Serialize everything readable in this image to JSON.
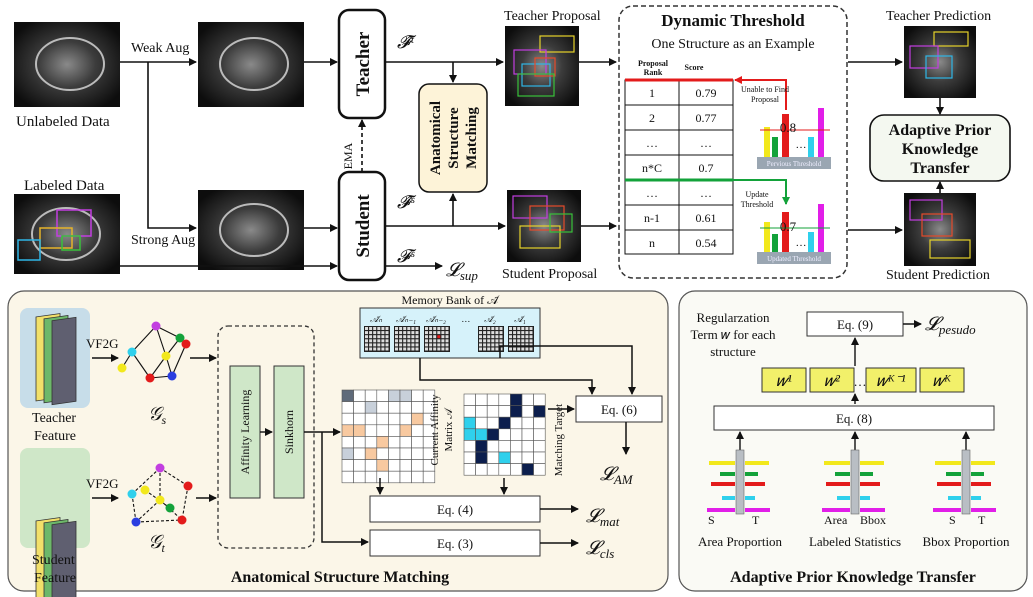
{
  "top": {
    "unlabeled_data": "Unlabeled Data",
    "labeled_data": "Labeled Data",
    "weak_aug": "Weak Aug",
    "strong_aug": "Strong Aug",
    "teacher": "Teacher",
    "student": "Student",
    "ema": "EMA",
    "f_t": "𝓕̂ᵗ",
    "f_s_hat": "𝓕̂ˢ",
    "f_s": "𝓕ˢ",
    "l_sup": "𝓛",
    "l_sup_sub": "sup",
    "asm_line1": "Anatomical",
    "asm_line2": "Structure",
    "asm_line3": "Matching",
    "teacher_proposal": "Teacher Proposal",
    "student_proposal": "Student Proposal",
    "teacher_prediction": "Teacher Prediction",
    "student_prediction": "Student Prediction",
    "apkt_line1": "Adaptive Prior",
    "apkt_line2": "Knowledge",
    "apkt_line3": "Transfer"
  },
  "dynamic_threshold": {
    "title": "Dynamic Threshold",
    "subtitle": "One Structure as an Example",
    "col_rank_line1": "Proposal",
    "col_rank_line2": "Rank",
    "col_score": "Score",
    "rows": [
      {
        "rank": "1",
        "score": "0.79"
      },
      {
        "rank": "2",
        "score": "0.77"
      },
      {
        "rank": "…",
        "score": "…"
      },
      {
        "rank": "n*C",
        "score": "0.7"
      },
      {
        "rank": "…",
        "score": "…"
      },
      {
        "rank": "n-1",
        "score": "0.61"
      },
      {
        "rank": "n",
        "score": "0.54"
      }
    ],
    "unable_line1": "Unable to Find",
    "unable_line2": "Proposal",
    "update_line1": "Update",
    "update_line2": "Threshold",
    "prev_value": "0.8",
    "prev_label": "Pervious Threshold",
    "upd_value": "0.7",
    "upd_label": "Updated Threshold",
    "dots": "…"
  },
  "asm_panel": {
    "title": "Anatomical Structure Matching",
    "vf2g": "VF2G",
    "teacher_feature_1": "Teacher",
    "teacher_feature_2": "Feature",
    "student_feature_1": "Student",
    "student_feature_2": "Feature",
    "g_s": "𝒢",
    "g_s_sub": "s",
    "g_t": "𝒢",
    "g_t_sub": "t",
    "affinity_learning": "Affinity Learning",
    "sinkhorn": "Sinkhorn",
    "memory_bank": "Memory Bank of 𝒜̄",
    "mb_labels": [
      "𝒜̄ₙ",
      "𝒜̄ₙ₋₁",
      "𝒜̄ₙ₋₂",
      "…",
      "𝒜̄₂",
      "𝒜̄₁"
    ],
    "current_affinity_1": "Current Affinity",
    "current_affinity_2": "Matrix 𝒜",
    "matching_target": "Matching Target",
    "eq6": "Eq. (6)",
    "eq4": "Eq. (4)",
    "eq3": "Eq. (3)",
    "l_am_sub": "AM",
    "l_mat_sub": "mat",
    "l_cls_sub": "cls",
    "l": "𝓛"
  },
  "apkt_panel": {
    "title": "Adaptive Prior Knowledge Transfer",
    "reg_line1": "Regularzation",
    "reg_line2": "Term 𝑤 for each",
    "reg_line3": "structure",
    "eq9": "Eq. (9)",
    "eq8": "Eq. (8)",
    "l_pesudo_sub": "pesudo",
    "w_labels": [
      "𝑤¹",
      "𝑤²",
      "…",
      "𝑤ᴷ⁻¹",
      "𝑤ᴷ"
    ],
    "area_proportion": "Area Proportion",
    "labeled_statistics": "Labeled Statistics",
    "bbox_proportion": "Bbox Proportion",
    "s": "S",
    "t": "T",
    "area": "Area",
    "bbox": "Bbox"
  },
  "colors": {
    "panel_bg": "#fbf6e8",
    "apkt_bg": "#fafaf5",
    "asm_box": "#fdf3d8",
    "green_box": "#cfe7c8",
    "w_box": "#f2f06a",
    "mb_bg": "#d6f2fa",
    "red": "#e31b1b",
    "green": "#13a23a"
  }
}
